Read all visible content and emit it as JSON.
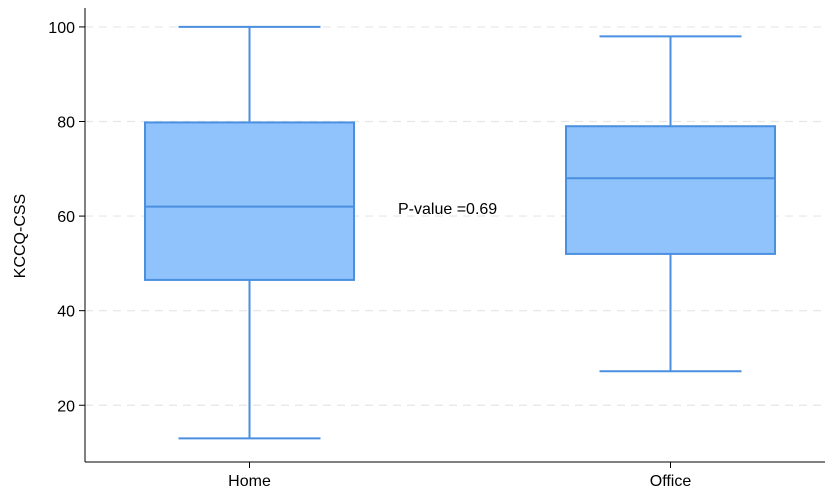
{
  "chart_data": {
    "type": "box",
    "title": "",
    "xlabel": "",
    "ylabel": "KCCQ-CSS",
    "ylim": [
      8,
      104
    ],
    "yticks": [
      20,
      40,
      60,
      80,
      100
    ],
    "grid": true,
    "categories": [
      "Home",
      "Office"
    ],
    "boxes": [
      {
        "category": "Home",
        "min": 13,
        "q1": 46.5,
        "median": 62,
        "q3": 79.8,
        "max": 100
      },
      {
        "category": "Office",
        "min": 27.2,
        "q1": 52,
        "median": 68,
        "q3": 79,
        "max": 98
      }
    ],
    "annotation": "P-value =0.69",
    "colors": {
      "box_fill": "#90c3fb",
      "box_stroke": "#4a8fe0",
      "grid": "#e6e6e6"
    }
  }
}
